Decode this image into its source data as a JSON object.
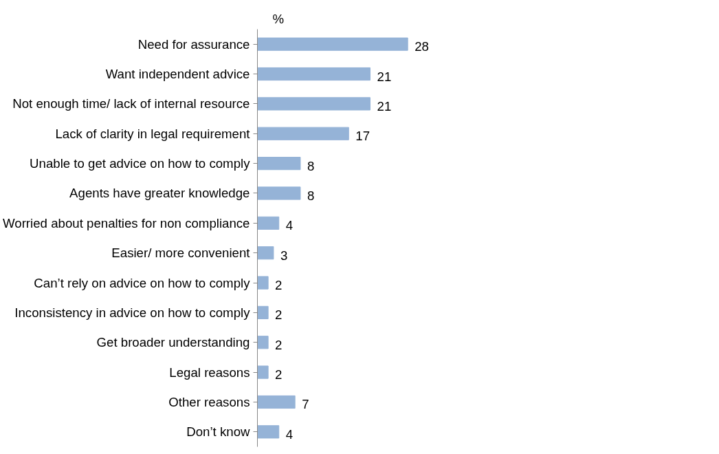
{
  "chart_data": {
    "type": "bar",
    "orientation": "horizontal",
    "xlabel": "%",
    "categories": [
      "Need for assurance",
      "Want independent advice",
      "Not enough time/ lack of internal resource",
      "Lack of clarity in legal requirement",
      "Unable to get advice on how to comply",
      "Agents have greater knowledge",
      "Worried about penalties for non compliance",
      "Easier/ more convenient",
      "Can’t rely on advice on how to comply",
      "Inconsistency in advice on how to comply",
      "Get broader understanding",
      "Legal reasons",
      "Other reasons",
      "Don’t know"
    ],
    "values": [
      28,
      21,
      21,
      17,
      8,
      8,
      4,
      3,
      2,
      2,
      2,
      2,
      7,
      4
    ],
    "color": "#95b3d7",
    "data_labels": true
  }
}
